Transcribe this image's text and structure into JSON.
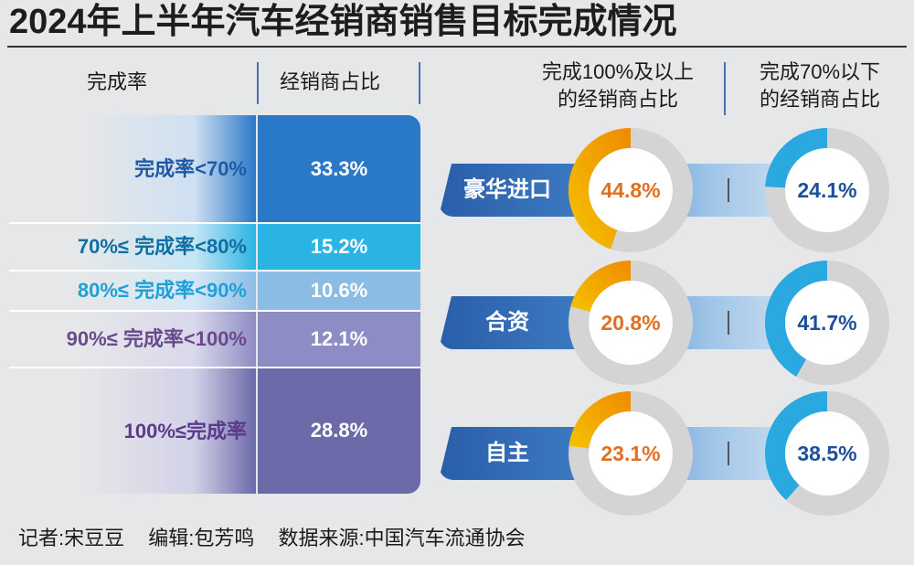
{
  "title": "2024年上半年汽车经销商销售目标完成情况",
  "colors": {
    "band_lt70": "#2a78c8",
    "band_70_80": "#2ab4e4",
    "band_80_90": "#8bbde4",
    "band_90_100": "#8e8cc4",
    "band_ge100": "#6c6aa8",
    "gold": "#f4c400",
    "orange": "#f08a00",
    "cyan": "#2aa8e0",
    "ring_gray": "#d4d4d4",
    "value_orange": "#e07020",
    "value_blue": "#1d4f9a"
  },
  "left_table": {
    "header_rate": "完成率",
    "header_share": "经销商占比",
    "rows": [
      {
        "label": "完成率<70%",
        "share": "33.3%",
        "label_color": "#1e5aa6"
      },
      {
        "label": "70%≤ 完成率<80%",
        "share": "15.2%",
        "label_color": "#0e6fa2"
      },
      {
        "label": "80%≤ 完成率<90%",
        "share": "10.6%",
        "label_color": "#1ea0d8"
      },
      {
        "label": "90%≤ 完成率<100%",
        "share": "12.1%",
        "label_color": "#6a4a8a"
      },
      {
        "label": "100%≤完成率",
        "share": "28.8%",
        "label_color": "#5a3a8a"
      }
    ]
  },
  "right_panel": {
    "header_100": [
      "完成100%及以上",
      "的经销商占比"
    ],
    "header_70": [
      "完成70%以下",
      "的经销商占比"
    ]
  },
  "chart_data": {
    "type": "table",
    "completion_distribution": {
      "categories": [
        "完成率<70%",
        "70%≤ 完成率<80%",
        "80%≤ 完成率<90%",
        "90%≤ 完成率<100%",
        "100%≤完成率"
      ],
      "values": [
        33.3,
        15.2,
        10.6,
        12.1,
        28.8
      ],
      "unit": "%"
    },
    "segments": [
      {
        "name": "豪华进口",
        "pct_100_plus": 44.8,
        "pct_below_70": 24.1
      },
      {
        "name": "合资",
        "pct_100_plus": 20.8,
        "pct_below_70": 41.7
      },
      {
        "name": "自主",
        "pct_100_plus": 23.1,
        "pct_below_70": 38.5
      }
    ]
  },
  "footer": {
    "reporter": "记者:宋豆豆",
    "editor": "编辑:包芳鸣",
    "source": "数据来源:中国汽车流通协会"
  }
}
